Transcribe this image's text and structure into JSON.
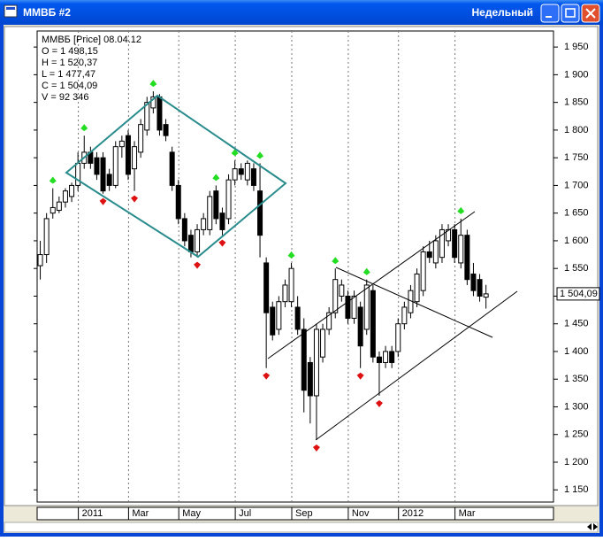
{
  "window": {
    "title": "ММВБ #2",
    "timeframe": "Недельный"
  },
  "chart_data": {
    "type": "candlestick",
    "info": [
      "ММВБ [Price] 08.04.12",
      "O = 1 498,15",
      "H = 1 520,37",
      "L = 1 477,47",
      "C = 1 504,09",
      "V = 92 346"
    ],
    "last_price_label": "1 504,09",
    "categories": [
      null,
      null,
      null,
      null,
      null,
      null,
      "2011",
      null,
      null,
      null,
      null,
      null,
      null,
      null,
      "Mar",
      null,
      null,
      null,
      null,
      null,
      null,
      null,
      "May",
      null,
      null,
      null,
      null,
      null,
      null,
      null,
      null,
      "Jul",
      null,
      null,
      null,
      null,
      null,
      null,
      null,
      null,
      "Sep",
      null,
      null,
      null,
      null,
      null,
      null,
      null,
      null,
      "Nov",
      null,
      null,
      null,
      null,
      null,
      null,
      null,
      "2012",
      null,
      null,
      null,
      null,
      null,
      null,
      null,
      null,
      "Mar",
      null,
      null,
      null,
      null,
      null
    ],
    "open": [
      1555,
      1575,
      1650,
      1655,
      1670,
      1680,
      1700,
      1740,
      1760,
      1750,
      1750,
      1720,
      1700,
      1770,
      1790,
      1730,
      1760,
      1800,
      1840,
      1860,
      1810,
      1760,
      1700,
      1640,
      1610,
      1580,
      1620,
      1620,
      1690,
      1650,
      1640,
      1710,
      1730,
      1710,
      1730,
      1690,
      1560,
      1480,
      1440,
      1490,
      1490,
      1480,
      1440,
      1380,
      1320,
      1390,
      1440,
      1470,
      1500,
      1500,
      1460,
      1480,
      1440,
      1510,
      1390,
      1380,
      1400,
      1400,
      1450,
      1470,
      1490,
      1510,
      1580,
      1560,
      1570,
      1600,
      1620,
      1560,
      1610,
      1540,
      1530,
      1498.15
    ],
    "high": [
      1600,
      1650,
      1695,
      1680,
      1695,
      1705,
      1760,
      1790,
      1770,
      1760,
      1760,
      1730,
      1780,
      1790,
      1800,
      1780,
      1820,
      1860,
      1870,
      1865,
      1820,
      1770,
      1710,
      1650,
      1620,
      1630,
      1650,
      1690,
      1700,
      1660,
      1720,
      1745,
      1740,
      1745,
      1740,
      1740,
      1570,
      1490,
      1500,
      1530,
      1560,
      1500,
      1460,
      1390,
      1450,
      1450,
      1480,
      1550,
      1530,
      1510,
      1510,
      1490,
      1530,
      1520,
      1400,
      1410,
      1410,
      1460,
      1490,
      1520,
      1550,
      1590,
      1600,
      1610,
      1630,
      1630,
      1630,
      1640,
      1620,
      1560,
      1540,
      1520.37
    ],
    "low": [
      1530,
      1560,
      1640,
      1650,
      1660,
      1670,
      1690,
      1730,
      1730,
      1710,
      1685,
      1690,
      1695,
      1750,
      1710,
      1690,
      1750,
      1790,
      1830,
      1790,
      1780,
      1690,
      1630,
      1590,
      1570,
      1570,
      1610,
      1610,
      1630,
      1610,
      1630,
      1700,
      1710,
      1700,
      1690,
      1570,
      1370,
      1420,
      1430,
      1480,
      1480,
      1430,
      1290,
      1270,
      1240,
      1380,
      1430,
      1460,
      1490,
      1450,
      1450,
      1370,
      1430,
      1380,
      1320,
      1370,
      1370,
      1390,
      1440,
      1460,
      1480,
      1500,
      1560,
      1550,
      1560,
      1590,
      1560,
      1550,
      1520,
      1500,
      1490,
      1477.47
    ],
    "close": [
      1575,
      1640,
      1660,
      1670,
      1690,
      1700,
      1740,
      1760,
      1740,
      1720,
      1690,
      1700,
      1770,
      1780,
      1720,
      1770,
      1810,
      1850,
      1860,
      1800,
      1790,
      1700,
      1640,
      1600,
      1580,
      1620,
      1640,
      1680,
      1640,
      1620,
      1710,
      1730,
      1720,
      1740,
      1700,
      1610,
      1470,
      1430,
      1490,
      1520,
      1550,
      1440,
      1330,
      1320,
      1440,
      1440,
      1470,
      1530,
      1520,
      1460,
      1500,
      1410,
      1520,
      1390,
      1380,
      1400,
      1380,
      1450,
      1480,
      1510,
      1540,
      1580,
      1570,
      1600,
      1620,
      1620,
      1570,
      1610,
      1530,
      1510,
      1500,
      1504.09
    ],
    "fractals_up": [
      2,
      7,
      18,
      28,
      31,
      35,
      40,
      47,
      52,
      67
    ],
    "fractals_down": [
      10,
      15,
      25,
      29,
      36,
      44,
      51,
      54
    ],
    "ylim": [
      1128,
      1979
    ],
    "yticks": [
      {
        "value": 1150,
        "label": "1 150"
      },
      {
        "value": 1200,
        "label": "1 200"
      },
      {
        "value": 1250,
        "label": "1 250"
      },
      {
        "value": 1300,
        "label": "1 300"
      },
      {
        "value": 1350,
        "label": "1 350"
      },
      {
        "value": 1400,
        "label": "1 400"
      },
      {
        "value": 1450,
        "label": "1 450"
      },
      {
        "value": 1500,
        "label": "1 500"
      },
      {
        "value": 1550,
        "label": "1 550"
      },
      {
        "value": 1600,
        "label": "1 600"
      },
      {
        "value": 1650,
        "label": "1 650"
      },
      {
        "value": 1700,
        "label": "1 700"
      },
      {
        "value": 1750,
        "label": "1 750"
      },
      {
        "value": 1800,
        "label": "1 800"
      },
      {
        "value": 1850,
        "label": "1 850"
      },
      {
        "value": 1900,
        "label": "1 900"
      },
      {
        "value": 1950,
        "label": "1 950"
      }
    ]
  }
}
